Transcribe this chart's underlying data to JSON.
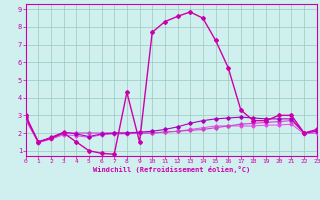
{
  "xlabel": "Windchill (Refroidissement éolien,°C)",
  "bg_color": "#cff0ee",
  "grid_color": "#99ccbb",
  "line_color1": "#cc00aa",
  "line_color2": "#cc44cc",
  "line_color3": "#aa00bb",
  "line_color4": "#ee44ee",
  "x_ticks": [
    0,
    1,
    2,
    3,
    4,
    5,
    6,
    7,
    8,
    9,
    10,
    11,
    12,
    13,
    14,
    15,
    16,
    17,
    18,
    19,
    20,
    21,
    22,
    23
  ],
  "y_ticks": [
    1,
    2,
    3,
    4,
    5,
    6,
    7,
    8,
    9
  ],
  "xlim": [
    0,
    23
  ],
  "ylim": [
    0.7,
    9.3
  ],
  "series1_x": [
    0,
    1,
    2,
    3,
    4,
    5,
    6,
    7,
    8,
    9,
    10,
    11,
    12,
    13,
    14,
    15,
    16,
    17,
    18,
    19,
    20,
    21,
    22,
    23
  ],
  "series1_y": [
    3.0,
    1.5,
    1.7,
    2.0,
    1.5,
    1.0,
    0.85,
    0.8,
    4.3,
    1.5,
    7.7,
    8.3,
    8.6,
    8.85,
    8.5,
    7.25,
    5.7,
    3.3,
    2.7,
    2.7,
    3.0,
    3.0,
    2.0,
    2.2
  ],
  "series2_x": [
    0,
    1,
    2,
    3,
    4,
    5,
    6,
    7,
    8,
    9,
    10,
    11,
    12,
    13,
    14,
    15,
    16,
    17,
    18,
    19,
    20,
    21,
    22,
    23
  ],
  "series2_y": [
    2.8,
    1.5,
    1.7,
    2.0,
    2.0,
    2.0,
    2.0,
    2.0,
    2.0,
    2.0,
    2.0,
    2.05,
    2.1,
    2.15,
    2.2,
    2.3,
    2.4,
    2.5,
    2.55,
    2.6,
    2.65,
    2.7,
    2.0,
    2.1
  ],
  "series3_x": [
    0,
    1,
    2,
    3,
    4,
    5,
    6,
    7,
    8,
    9,
    10,
    11,
    12,
    13,
    14,
    15,
    16,
    17,
    18,
    19,
    20,
    21,
    22,
    23
  ],
  "series3_y": [
    2.9,
    1.5,
    1.75,
    2.05,
    1.95,
    1.8,
    1.95,
    2.0,
    2.0,
    2.05,
    2.1,
    2.2,
    2.35,
    2.55,
    2.7,
    2.8,
    2.85,
    2.9,
    2.85,
    2.8,
    2.8,
    2.8,
    2.0,
    2.1
  ],
  "series4_x": [
    0,
    1,
    2,
    3,
    4,
    5,
    6,
    7,
    8,
    9,
    10,
    11,
    12,
    13,
    14,
    15,
    16,
    17,
    18,
    19,
    20,
    21,
    22,
    23
  ],
  "series4_y": [
    2.75,
    1.45,
    1.65,
    1.9,
    1.85,
    1.75,
    1.9,
    1.95,
    1.95,
    1.98,
    2.0,
    2.05,
    2.1,
    2.2,
    2.3,
    2.4,
    2.4,
    2.4,
    2.4,
    2.45,
    2.45,
    2.5,
    1.95,
    2.0
  ]
}
